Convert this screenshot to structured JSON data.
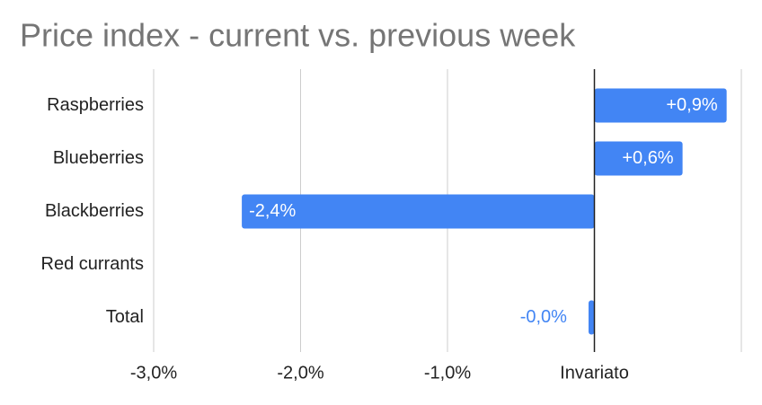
{
  "chart_data": {
    "type": "hbar",
    "title": "Price index - current vs. previous week",
    "categories": [
      "Raspberries",
      "Blueberries",
      "Blackberries",
      "Red currants",
      "Total"
    ],
    "values": [
      0.9,
      0.6,
      -2.4,
      null,
      -0.04
    ],
    "value_labels": [
      "+0,9%",
      "+0,6%",
      "-2,4%",
      null,
      "-0,0%"
    ],
    "color": "#4285f4",
    "xlim": [
      -3,
      1
    ],
    "xticks": [
      {
        "value": -3,
        "label": "-3,0%"
      },
      {
        "value": -2,
        "label": "-2,0%"
      },
      {
        "value": -1,
        "label": "-1,0%"
      },
      {
        "value": 0,
        "label": "Invariato"
      }
    ],
    "grid": true
  }
}
